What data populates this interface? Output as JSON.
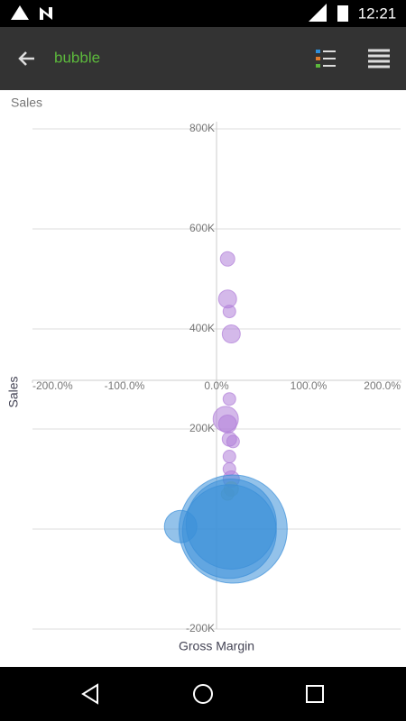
{
  "status_bar": {
    "time": "12:21"
  },
  "app_bar": {
    "title": "bubble"
  },
  "chart_data": {
    "type": "bubble",
    "corner_label": "Sales",
    "x_label": "Gross Margin",
    "y_label": "Sales",
    "xlim": [
      -200,
      200
    ],
    "ylim": [
      -200000,
      800000
    ],
    "xticks": [
      {
        "value": -200,
        "label": "-200.0%"
      },
      {
        "value": -100,
        "label": "-100.0%"
      },
      {
        "value": 0,
        "label": "0.0%"
      },
      {
        "value": 100,
        "label": "100.0%"
      },
      {
        "value": 200,
        "label": "200.0%"
      }
    ],
    "yticks": [
      {
        "value": -200000,
        "label": "-200K"
      },
      {
        "value": 200000,
        "label": "200K"
      },
      {
        "value": 400000,
        "label": "400K"
      },
      {
        "value": 600000,
        "label": "600K"
      },
      {
        "value": 800000,
        "label": "800K"
      }
    ],
    "grid": true,
    "series": [
      {
        "color": "#b07fd8",
        "x": [
          12,
          12,
          14,
          16,
          14,
          10,
          12,
          14,
          18,
          14,
          14,
          16
        ],
        "values": [
          540000,
          460000,
          435000,
          390000,
          260000,
          220000,
          210000,
          180000,
          175000,
          145000,
          120000,
          100000
        ],
        "sizes": [
          8,
          10,
          7,
          10,
          7,
          14,
          10,
          8,
          7,
          7,
          7,
          9
        ]
      },
      {
        "color": "#c9c25a",
        "x": [
          16,
          12
        ],
        "values": [
          80000,
          70000
        ],
        "sizes": [
          8,
          7
        ]
      },
      {
        "color": "#3a8fd9",
        "x": [
          -39,
          18,
          14,
          16
        ],
        "values": [
          5000,
          0,
          -5000,
          10000
        ],
        "sizes": [
          18,
          60,
          52,
          50
        ]
      }
    ]
  }
}
